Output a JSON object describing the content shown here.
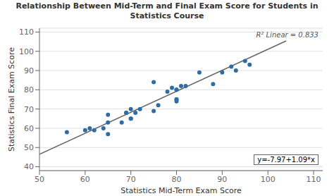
{
  "chart_data": {
    "type": "scatter",
    "title": "Relationship Between Mid-Term and Final Exam Score for Students in Statistics Course",
    "xlabel": "Statistics Mid-Term Exam Score",
    "ylabel": "Statistics Final Exam Score",
    "xlim": [
      50,
      112
    ],
    "ylim": [
      38,
      112
    ],
    "xticks": [
      50,
      60,
      70,
      80,
      90,
      100,
      110
    ],
    "yticks": [
      40,
      50,
      60,
      70,
      80,
      90,
      100,
      110
    ],
    "grid": "y",
    "series": [
      {
        "type": "scatter",
        "color": "#2e6da4",
        "x": [
          56,
          60,
          61,
          62,
          64,
          65,
          65,
          65,
          68,
          69,
          69,
          70,
          70,
          70,
          71,
          72,
          75,
          75,
          76,
          78,
          79,
          80,
          80,
          80,
          80,
          80,
          81,
          82,
          85,
          88,
          90,
          92,
          93,
          95,
          96
        ],
        "values": [
          58,
          59,
          60,
          59,
          60,
          67,
          63,
          57,
          63,
          68,
          68,
          65,
          65,
          70,
          68,
          70,
          69,
          84,
          72,
          79,
          81,
          80,
          80,
          75,
          75,
          74,
          82,
          82,
          89,
          83,
          89,
          92,
          90,
          95,
          93
        ]
      },
      {
        "type": "line",
        "color": "#666666",
        "x": [
          50,
          104
        ],
        "values": [
          46.53,
          105.39
        ]
      }
    ],
    "annotations": [
      "y=-7.97+1.09*x",
      "R² Linear = 0.833"
    ]
  }
}
